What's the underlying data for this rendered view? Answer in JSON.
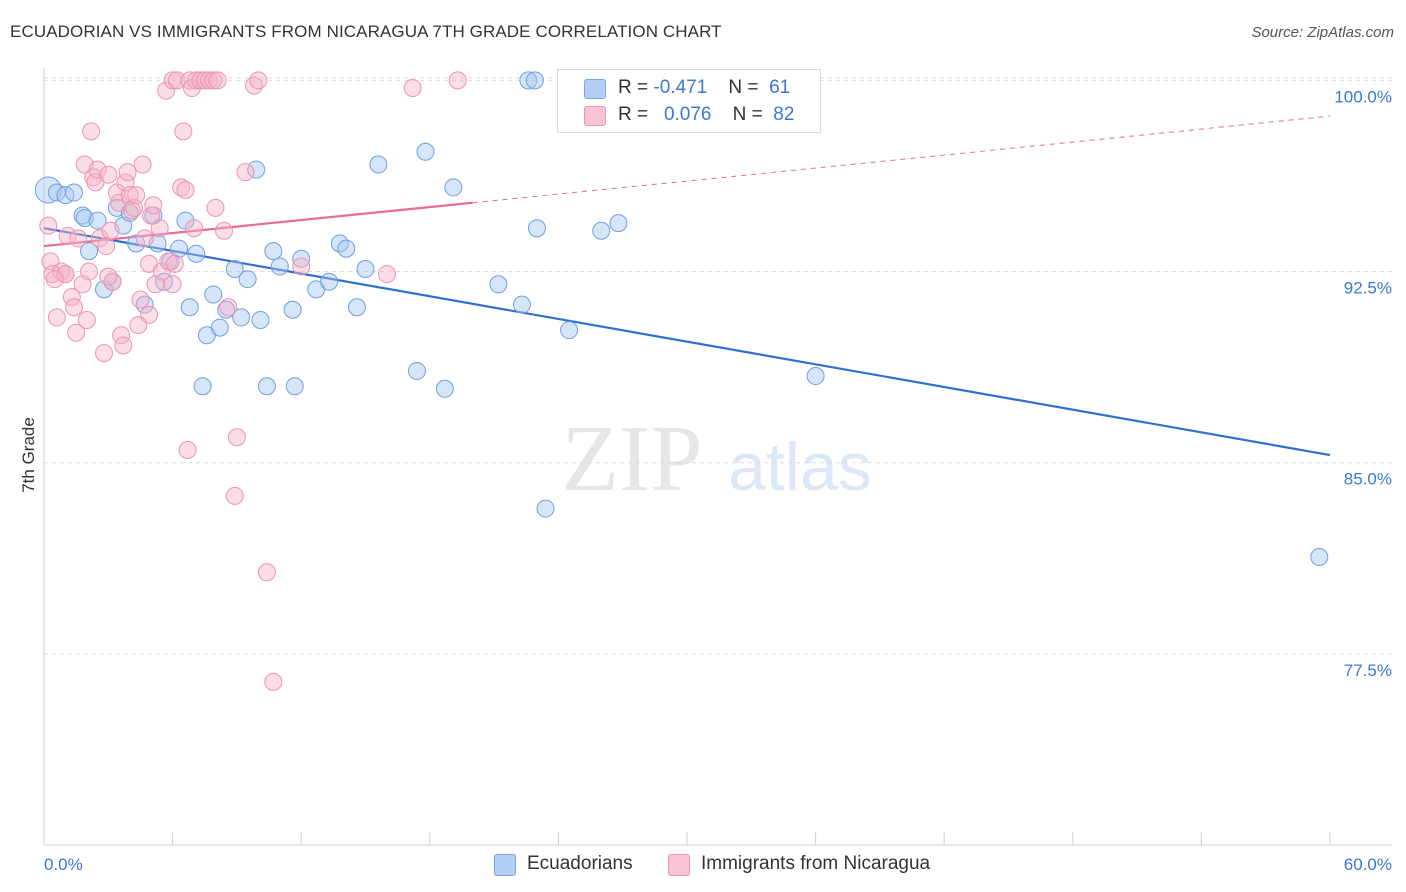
{
  "header": {
    "title": "ECUADORIAN VS IMMIGRANTS FROM NICARAGUA 7TH GRADE CORRELATION CHART",
    "source": "Source: ZipAtlas.com"
  },
  "watermark": {
    "zip": "ZIP",
    "atlas": "atlas"
  },
  "legend": {
    "rows": [
      {
        "r_label": "R =",
        "r_value": "-0.471",
        "n_label": "N =",
        "n_value": "61"
      },
      {
        "r_label": "R =",
        "r_value": "0.076",
        "n_label": "N =",
        "n_value": "82"
      }
    ]
  },
  "bottom_legend": {
    "series1": "Ecuadorians",
    "series2": "Immigrants from Nicaragua"
  },
  "chart_data": {
    "type": "scatter",
    "title": "ECUADORIAN VS IMMIGRANTS FROM NICARAGUA 7TH GRADE CORRELATION CHART",
    "xlabel": "",
    "ylabel": "7th Grade",
    "xlim": [
      0,
      60
    ],
    "ylim": [
      70,
      100.8
    ],
    "x_tick_labels": [
      "0.0%",
      "60.0%"
    ],
    "y_ticks": [
      77.5,
      85.0,
      92.5,
      100.0
    ],
    "y_tick_labels": [
      "77.5%",
      "85.0%",
      "92.5%",
      "100.0%"
    ],
    "grid": true,
    "legend_placement": "top-center",
    "colors": {
      "ecuadorians": "#a7c6f2",
      "ecuadorians_line": "#2f6fd1",
      "nicaragua": "#f5b3c8",
      "nicaragua_line": "#e86a97",
      "axis_text": "#3a78d4"
    },
    "series": [
      {
        "name": "Ecuadorians",
        "r": -0.471,
        "n": 61,
        "trend": {
          "x": [
            0,
            60
          ],
          "y": [
            94.2,
            85.3
          ]
        },
        "points": [
          [
            0.2,
            95.7
          ],
          [
            0.6,
            95.6
          ],
          [
            1.0,
            95.5
          ],
          [
            1.4,
            95.6
          ],
          [
            1.8,
            94.7
          ],
          [
            1.9,
            94.6
          ],
          [
            2.1,
            93.3
          ],
          [
            2.5,
            94.5
          ],
          [
            2.8,
            91.8
          ],
          [
            3.2,
            92.1
          ],
          [
            3.4,
            95.0
          ],
          [
            3.7,
            94.3
          ],
          [
            4.0,
            94.8
          ],
          [
            4.3,
            93.6
          ],
          [
            4.7,
            91.2
          ],
          [
            5.1,
            94.7
          ],
          [
            5.3,
            93.6
          ],
          [
            5.6,
            92.1
          ],
          [
            5.9,
            92.9
          ],
          [
            6.3,
            93.4
          ],
          [
            6.6,
            94.5
          ],
          [
            6.8,
            91.1
          ],
          [
            7.1,
            93.2
          ],
          [
            7.4,
            88.0
          ],
          [
            7.6,
            90.0
          ],
          [
            7.9,
            91.6
          ],
          [
            8.2,
            90.3
          ],
          [
            8.5,
            91.0
          ],
          [
            8.9,
            92.6
          ],
          [
            9.2,
            90.7
          ],
          [
            9.5,
            92.2
          ],
          [
            9.9,
            96.5
          ],
          [
            10.1,
            90.6
          ],
          [
            10.4,
            88.0
          ],
          [
            10.7,
            93.3
          ],
          [
            11.0,
            92.7
          ],
          [
            11.6,
            91.0
          ],
          [
            11.7,
            88.0
          ],
          [
            12.0,
            93.0
          ],
          [
            12.7,
            91.8
          ],
          [
            13.3,
            92.1
          ],
          [
            13.8,
            93.6
          ],
          [
            14.1,
            93.4
          ],
          [
            14.6,
            91.1
          ],
          [
            15.0,
            92.6
          ],
          [
            15.6,
            96.7
          ],
          [
            17.4,
            88.6
          ],
          [
            17.8,
            97.2
          ],
          [
            18.7,
            87.9
          ],
          [
            19.1,
            95.8
          ],
          [
            21.2,
            92.0
          ],
          [
            22.3,
            91.2
          ],
          [
            22.6,
            100.0
          ],
          [
            22.9,
            100.0
          ],
          [
            23.0,
            94.2
          ],
          [
            23.4,
            83.2
          ],
          [
            24.5,
            90.2
          ],
          [
            26.0,
            94.1
          ],
          [
            26.8,
            94.4
          ],
          [
            36.0,
            88.4
          ],
          [
            59.5,
            81.3
          ]
        ]
      },
      {
        "name": "Immigrants from Nicaragua",
        "r": 0.076,
        "n": 82,
        "trend": {
          "x": [
            0,
            20
          ],
          "y": [
            93.5,
            95.2
          ],
          "dashed_to": {
            "x": 60,
            "y": 98.6
          }
        },
        "points": [
          [
            0.2,
            94.3
          ],
          [
            0.3,
            92.9
          ],
          [
            0.4,
            92.4
          ],
          [
            0.6,
            90.7
          ],
          [
            0.8,
            92.5
          ],
          [
            1.0,
            92.4
          ],
          [
            1.1,
            93.9
          ],
          [
            1.3,
            91.5
          ],
          [
            1.4,
            91.1
          ],
          [
            1.5,
            90.1
          ],
          [
            1.6,
            93.8
          ],
          [
            1.8,
            92.0
          ],
          [
            1.9,
            96.7
          ],
          [
            2.0,
            90.6
          ],
          [
            2.2,
            98.0
          ],
          [
            2.3,
            96.2
          ],
          [
            2.4,
            96.0
          ],
          [
            2.5,
            96.5
          ],
          [
            2.6,
            93.8
          ],
          [
            2.8,
            89.3
          ],
          [
            2.9,
            93.5
          ],
          [
            3.0,
            96.3
          ],
          [
            3.1,
            94.1
          ],
          [
            3.2,
            92.1
          ],
          [
            3.4,
            95.6
          ],
          [
            3.5,
            95.2
          ],
          [
            3.6,
            90.0
          ],
          [
            3.7,
            89.6
          ],
          [
            3.8,
            96.0
          ],
          [
            3.9,
            96.4
          ],
          [
            4.0,
            95.5
          ],
          [
            4.1,
            94.9
          ],
          [
            4.2,
            95.0
          ],
          [
            4.3,
            95.5
          ],
          [
            4.5,
            91.4
          ],
          [
            4.6,
            96.7
          ],
          [
            4.7,
            93.8
          ],
          [
            4.9,
            92.8
          ],
          [
            4.9,
            90.8
          ],
          [
            5.0,
            94.7
          ],
          [
            5.1,
            95.1
          ],
          [
            5.2,
            92.0
          ],
          [
            5.4,
            94.2
          ],
          [
            5.5,
            92.5
          ],
          [
            5.7,
            99.6
          ],
          [
            5.8,
            92.9
          ],
          [
            6.0,
            100.0
          ],
          [
            6.1,
            92.8
          ],
          [
            6.2,
            100.0
          ],
          [
            6.4,
            95.8
          ],
          [
            6.5,
            98.0
          ],
          [
            6.6,
            95.7
          ],
          [
            6.7,
            85.5
          ],
          [
            6.8,
            100.0
          ],
          [
            6.9,
            99.7
          ],
          [
            7.0,
            94.2
          ],
          [
            7.1,
            100.0
          ],
          [
            7.3,
            100.0
          ],
          [
            7.5,
            100.0
          ],
          [
            7.7,
            100.0
          ],
          [
            7.9,
            100.0
          ],
          [
            8.1,
            100.0
          ],
          [
            8.4,
            94.1
          ],
          [
            8.6,
            91.1
          ],
          [
            8.9,
            83.7
          ],
          [
            9.0,
            86.0
          ],
          [
            9.4,
            96.4
          ],
          [
            9.8,
            99.8
          ],
          [
            10.0,
            100.0
          ],
          [
            10.4,
            80.7
          ],
          [
            10.7,
            76.4
          ],
          [
            12.0,
            92.7
          ],
          [
            16.0,
            92.4
          ],
          [
            17.2,
            99.7
          ],
          [
            19.3,
            100.0
          ],
          [
            1.0,
            92.4
          ],
          [
            3.0,
            92.3
          ],
          [
            2.1,
            92.5
          ],
          [
            0.5,
            92.2
          ],
          [
            6.0,
            92.0
          ],
          [
            4.4,
            90.4
          ],
          [
            8.0,
            95.0
          ]
        ]
      }
    ]
  }
}
